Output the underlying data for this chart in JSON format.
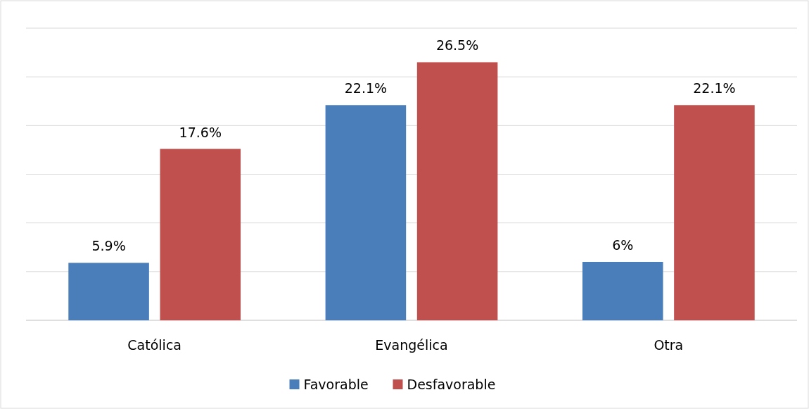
{
  "chart_data": {
    "type": "bar",
    "categories": [
      "Católica",
      "Evangélica",
      "Otra"
    ],
    "series": [
      {
        "name": "Favorable",
        "color": "#4a7ebb",
        "values": [
          5.9,
          22.1,
          6
        ],
        "value_labels": [
          "5.9%",
          "22.1%",
          "6%"
        ]
      },
      {
        "name": "Desfavorable",
        "color": "#c0504d",
        "values": [
          17.6,
          26.5,
          22.1
        ],
        "value_labels": [
          "17.6%",
          "26.5%",
          "22.1%"
        ]
      }
    ],
    "ylim": [
      0,
      30
    ],
    "yticks": [
      {
        "value": 0,
        "label": null
      },
      {
        "value": 5,
        "label": null
      },
      {
        "value": 10,
        "label": null
      },
      {
        "value": 15,
        "label": null
      },
      {
        "value": 20,
        "label": null
      },
      {
        "value": 25,
        "label": null
      },
      {
        "value": 30,
        "label": null
      }
    ],
    "grid": "y",
    "tick_labels": "x",
    "legend": "bottom"
  }
}
